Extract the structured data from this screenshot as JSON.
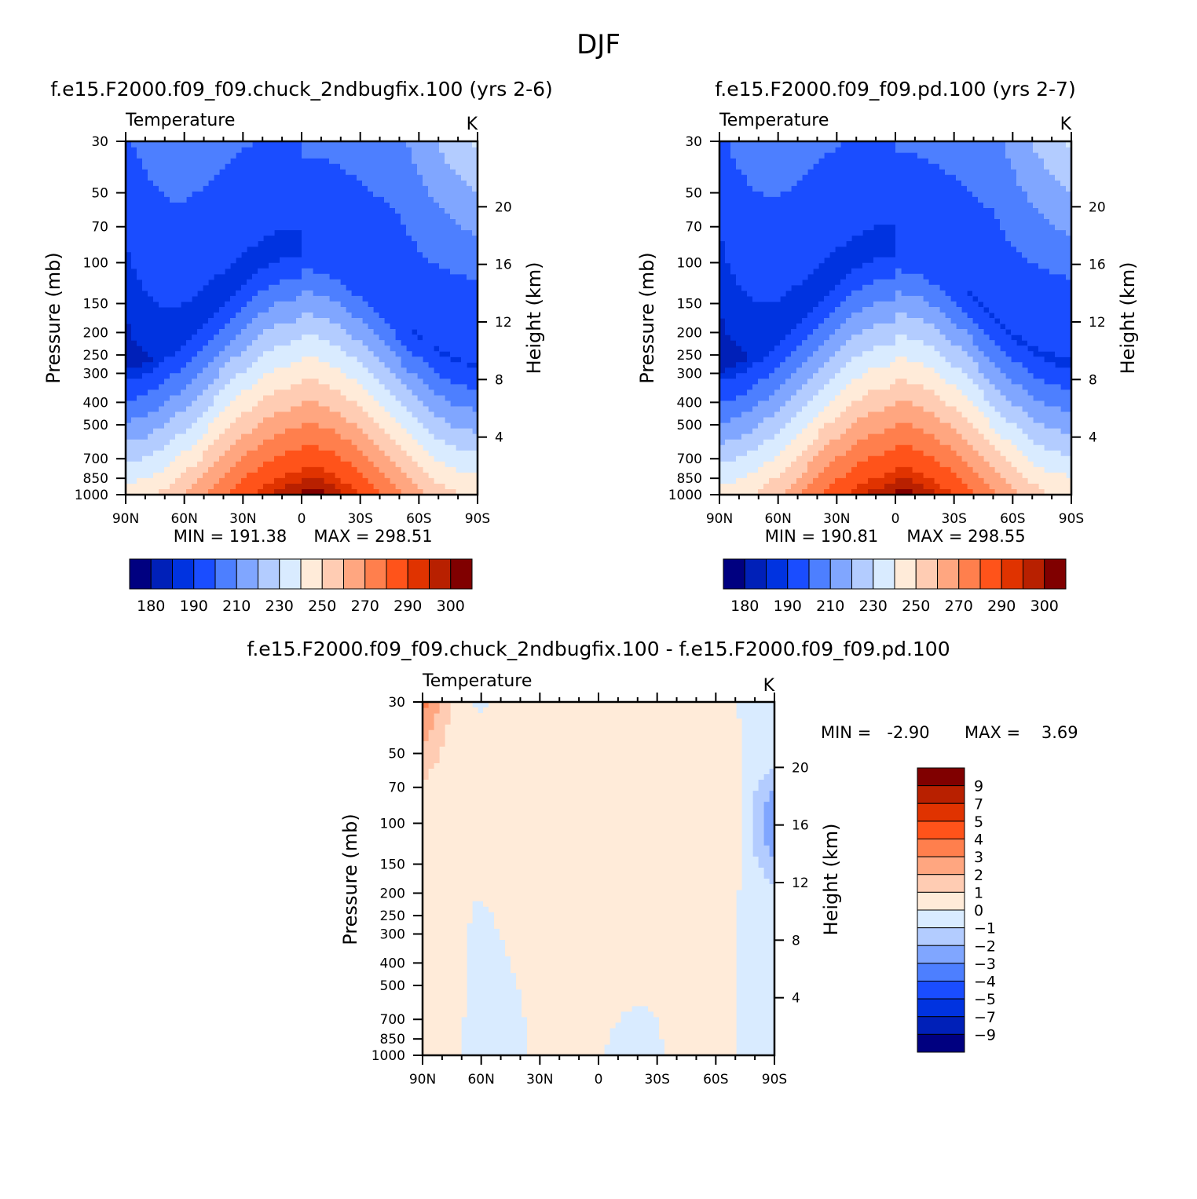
{
  "figure": {
    "title": "DJF",
    "colors": {
      "abs_scale": [
        "#000080",
        "#0020B8",
        "#0033E0",
        "#1A4DFF",
        "#4D7FFF",
        "#80A6FF",
        "#B3CCFF",
        "#D9EBFF",
        "#FFEBD9",
        "#FFCCB3",
        "#FFA680",
        "#FF7F4D",
        "#FF531A",
        "#E03300",
        "#B82000",
        "#800000"
      ],
      "diff_scale": [
        "#000080",
        "#0020B8",
        "#0033E0",
        "#1A4DFF",
        "#4D7FFF",
        "#80A6FF",
        "#B3CCFF",
        "#D9EBFF",
        "#FFEBD9",
        "#FFCCB3",
        "#FFA680",
        "#FF7F4D",
        "#FF531A",
        "#E03300",
        "#B82000",
        "#800000"
      ]
    }
  },
  "chart_data": [
    {
      "id": "panel1",
      "type": "contour",
      "title": "f.e15.F2000.f09_f09.chuck_2ndbugfix.100 (yrs 2-6)",
      "left_label": "Temperature",
      "right_label": "K",
      "ylabel": "Pressure (mb)",
      "ylabel_right": "Height (km)",
      "xticks": [
        "90N",
        "60N",
        "30N",
        "0",
        "30S",
        "60S",
        "90S"
      ],
      "yticks": [
        30,
        50,
        70,
        100,
        150,
        200,
        250,
        300,
        400,
        500,
        700,
        850,
        1000
      ],
      "yticks_right": [
        20,
        16,
        12,
        8,
        4
      ],
      "xlim": [
        -90,
        90
      ],
      "ylim": [
        1000,
        30
      ],
      "y_scale": "log",
      "min_label": "MIN = 191.38",
      "max_label": "MAX = 298.51",
      "min": 191.38,
      "max": 298.51,
      "colorbar_labels": [
        "180",
        "190",
        "210",
        "230",
        "250",
        "270",
        "290",
        "300"
      ]
    },
    {
      "id": "panel2",
      "type": "contour",
      "title": "f.e15.F2000.f09_f09.pd.100 (yrs 2-7)",
      "left_label": "Temperature",
      "right_label": "K",
      "ylabel": "Pressure (mb)",
      "ylabel_right": "Height (km)",
      "xticks": [
        "90N",
        "60N",
        "30N",
        "0",
        "30S",
        "60S",
        "90S"
      ],
      "yticks": [
        30,
        50,
        70,
        100,
        150,
        200,
        250,
        300,
        400,
        500,
        700,
        850,
        1000
      ],
      "yticks_right": [
        20,
        16,
        12,
        8,
        4
      ],
      "xlim": [
        -90,
        90
      ],
      "ylim": [
        1000,
        30
      ],
      "y_scale": "log",
      "min_label": "MIN = 190.81",
      "max_label": "MAX = 298.55",
      "min": 190.81,
      "max": 298.55,
      "colorbar_labels": [
        "180",
        "190",
        "210",
        "230",
        "250",
        "270",
        "290",
        "300"
      ]
    },
    {
      "id": "panel3",
      "type": "contour",
      "title": "f.e15.F2000.f09_f09.chuck_2ndbugfix.100 - f.e15.F2000.f09_f09.pd.100",
      "left_label": "Temperature",
      "right_label": "K",
      "ylabel": "Pressure (mb)",
      "ylabel_right": "Height (km)",
      "xticks": [
        "90N",
        "60N",
        "30N",
        "0",
        "30S",
        "60S",
        "90S"
      ],
      "yticks": [
        30,
        50,
        70,
        100,
        150,
        200,
        250,
        300,
        400,
        500,
        700,
        850,
        1000
      ],
      "yticks_right": [
        20,
        16,
        12,
        8,
        4
      ],
      "xlim": [
        -90,
        90
      ],
      "ylim": [
        1000,
        30
      ],
      "y_scale": "log",
      "min_label": "MIN =   -2.90",
      "max_label": "MAX =    3.69",
      "min": -2.9,
      "max": 3.69,
      "colorbar_labels": [
        "9",
        "7",
        "5",
        "4",
        "3",
        "2",
        "1",
        "0",
        "-1",
        "-2",
        "-3",
        "-4",
        "-5",
        "-7",
        "-9"
      ]
    }
  ]
}
